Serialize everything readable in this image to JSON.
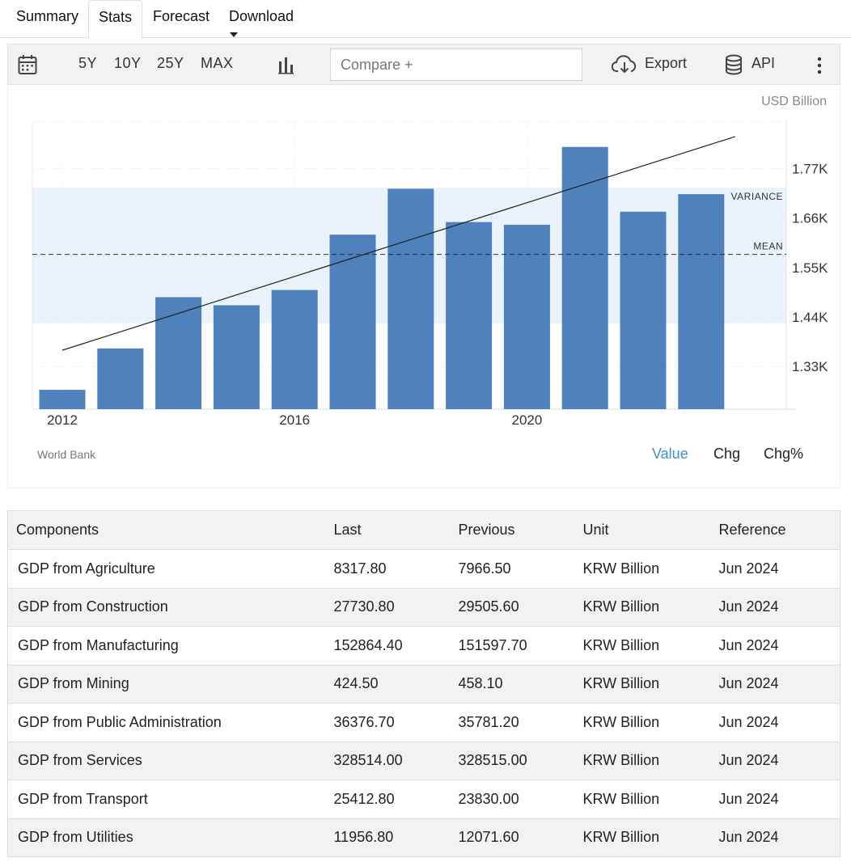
{
  "tabs": [
    {
      "label": "Summary"
    },
    {
      "label": "Stats"
    },
    {
      "label": "Forecast"
    },
    {
      "label": "Download"
    }
  ],
  "toolbar": {
    "ranges": [
      "5Y",
      "10Y",
      "25Y",
      "MAX"
    ],
    "compare_placeholder": "Compare +",
    "export_label": "Export",
    "api_label": "API"
  },
  "chart": {
    "unit": "USD Billion",
    "source": "World Bank",
    "modes": [
      "Value",
      "Chg",
      "Chg%"
    ],
    "active_mode": "Value",
    "bar_color": "#4f81bd",
    "band_color": "#eaf3fb"
  },
  "chart_data": {
    "type": "bar",
    "categories": [
      "2012",
      "2013",
      "2014",
      "2015",
      "2016",
      "2017",
      "2018",
      "2019",
      "2020",
      "2021",
      "2022",
      "2023"
    ],
    "values": [
      1278,
      1370,
      1484,
      1466,
      1500,
      1623,
      1725,
      1651,
      1645,
      1818,
      1674,
      1713
    ],
    "x_tick_labels": [
      "2012",
      "2016",
      "2020"
    ],
    "y_ticks": [
      1330,
      1440,
      1550,
      1660,
      1770
    ],
    "y_tick_labels": [
      "1.33K",
      "1.44K",
      "1.55K",
      "1.66K",
      "1.77K"
    ],
    "ylim": [
      1235,
      1875
    ],
    "mean": 1579,
    "mean_label": "MEAN",
    "variance_band": [
      1426,
      1728
    ],
    "variance_label": "VARIANCE",
    "trendline": {
      "start": 1366,
      "end": 1841
    },
    "grid": true
  },
  "table": {
    "headers": [
      "Components",
      "Last",
      "Previous",
      "Unit",
      "Reference"
    ],
    "rows": [
      [
        "GDP from Agriculture",
        "8317.80",
        "7966.50",
        "KRW Billion",
        "Jun 2024"
      ],
      [
        "GDP from Construction",
        "27730.80",
        "29505.60",
        "KRW Billion",
        "Jun 2024"
      ],
      [
        "GDP from Manufacturing",
        "152864.40",
        "151597.70",
        "KRW Billion",
        "Jun 2024"
      ],
      [
        "GDP from Mining",
        "424.50",
        "458.10",
        "KRW Billion",
        "Jun 2024"
      ],
      [
        "GDP from Public Administration",
        "36376.70",
        "35781.20",
        "KRW Billion",
        "Jun 2024"
      ],
      [
        "GDP from Services",
        "328514.00",
        "328515.00",
        "KRW Billion",
        "Jun 2024"
      ],
      [
        "GDP from Transport",
        "25412.80",
        "23830.00",
        "KRW Billion",
        "Jun 2024"
      ],
      [
        "GDP from Utilities",
        "11956.80",
        "12071.60",
        "KRW Billion",
        "Jun 2024"
      ]
    ]
  }
}
